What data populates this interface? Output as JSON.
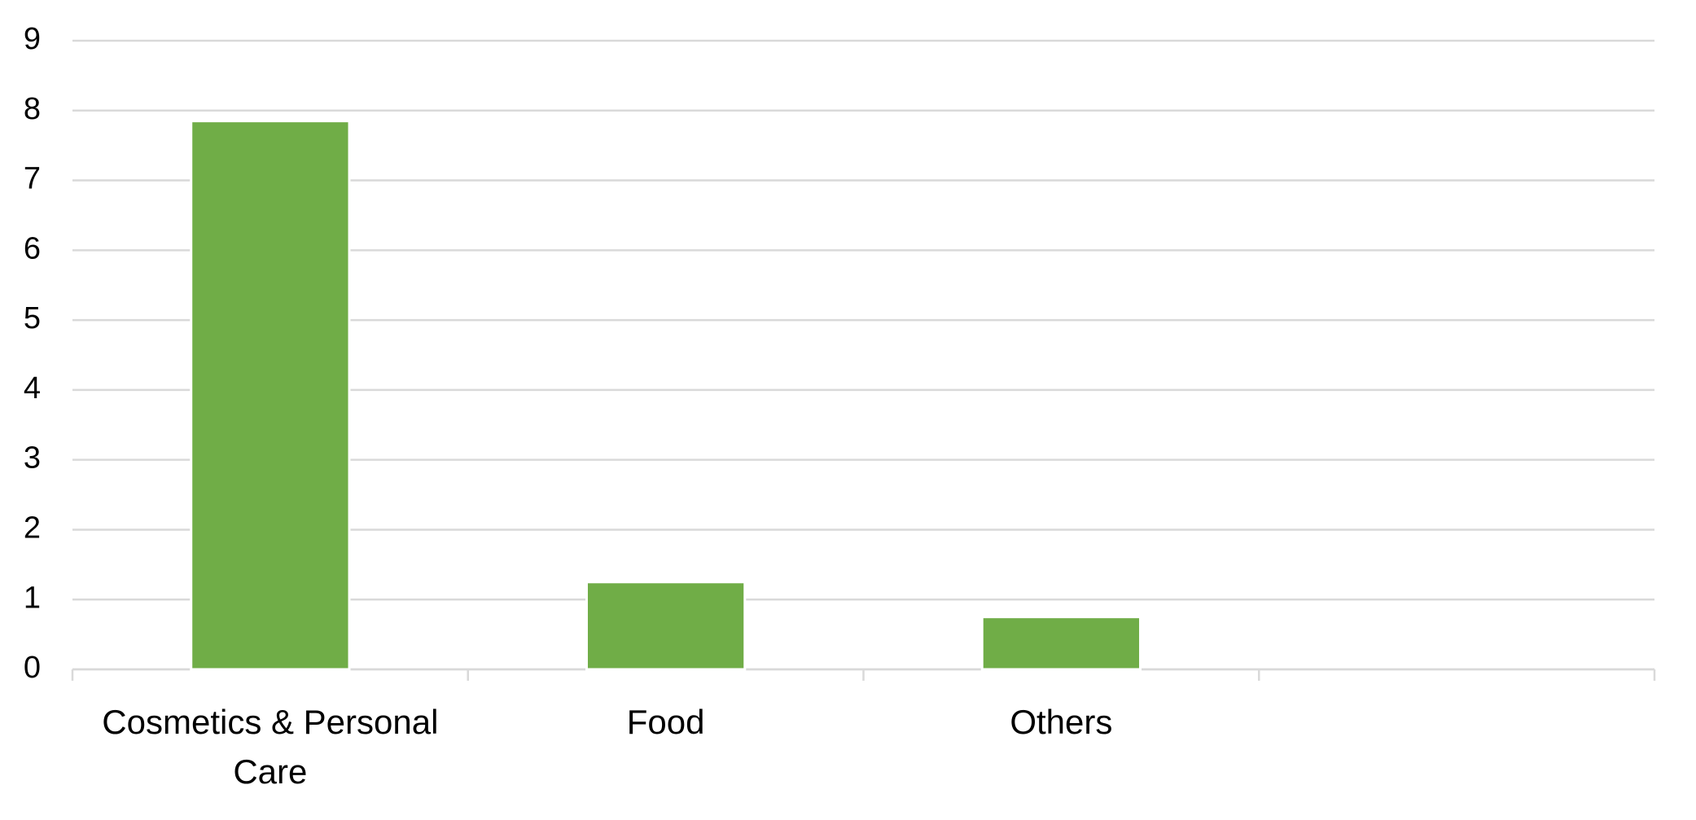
{
  "chart_data": {
    "type": "bar",
    "categories": [
      "Cosmetics & Personal Care",
      "Food",
      "Others",
      null
    ],
    "values": [
      7.85,
      1.25,
      0.75,
      null
    ],
    "color": "#70ad47",
    "ylim": [
      0,
      9
    ],
    "yticks": [
      0,
      1,
      2,
      3,
      4,
      5,
      6,
      7,
      8,
      9
    ],
    "grid": true
  }
}
